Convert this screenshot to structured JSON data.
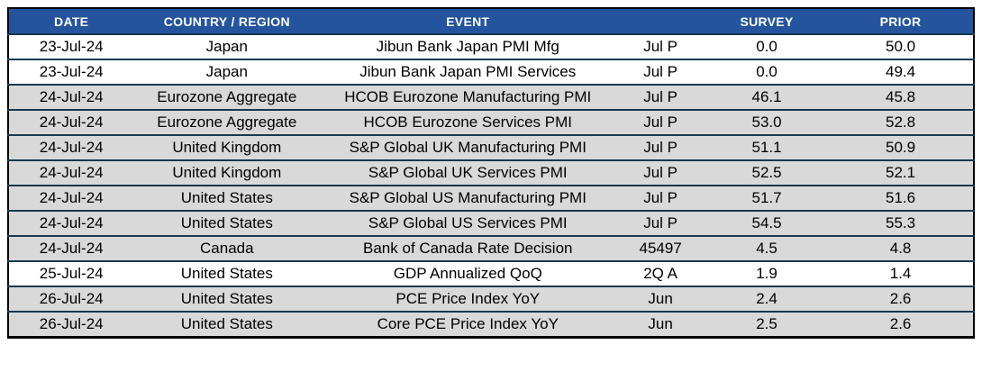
{
  "table": {
    "columns": [
      {
        "label": "DATE"
      },
      {
        "label": "COUNTRY / REGION"
      },
      {
        "label": "EVENT"
      },
      {
        "label": ""
      },
      {
        "label": "SURVEY"
      },
      {
        "label": "PRIOR"
      }
    ],
    "rows": [
      {
        "date": "23-Jul-24",
        "country": "Japan",
        "event": "Jibun Bank Japan PMI Mfg",
        "period": "Jul P",
        "survey": "0.0",
        "prior": "50.0",
        "shaded": false
      },
      {
        "date": "23-Jul-24",
        "country": "Japan",
        "event": "Jibun Bank Japan PMI Services",
        "period": "Jul P",
        "survey": "0.0",
        "prior": "49.4",
        "shaded": false
      },
      {
        "date": "24-Jul-24",
        "country": "Eurozone Aggregate",
        "event": "HCOB Eurozone Manufacturing PMI",
        "period": "Jul P",
        "survey": "46.1",
        "prior": "45.8",
        "shaded": true
      },
      {
        "date": "24-Jul-24",
        "country": "Eurozone Aggregate",
        "event": "HCOB Eurozone Services PMI",
        "period": "Jul P",
        "survey": "53.0",
        "prior": "52.8",
        "shaded": true
      },
      {
        "date": "24-Jul-24",
        "country": "United Kingdom",
        "event": "S&P Global UK Manufacturing PMI",
        "period": "Jul P",
        "survey": "51.1",
        "prior": "50.9",
        "shaded": true
      },
      {
        "date": "24-Jul-24",
        "country": "United Kingdom",
        "event": "S&P Global UK Services PMI",
        "period": "Jul P",
        "survey": "52.5",
        "prior": "52.1",
        "shaded": true
      },
      {
        "date": "24-Jul-24",
        "country": "United States",
        "event": "S&P Global US Manufacturing PMI",
        "period": "Jul P",
        "survey": "51.7",
        "prior": "51.6",
        "shaded": true
      },
      {
        "date": "24-Jul-24",
        "country": "United States",
        "event": "S&P Global US Services PMI",
        "period": "Jul P",
        "survey": "54.5",
        "prior": "55.3",
        "shaded": true
      },
      {
        "date": "24-Jul-24",
        "country": "Canada",
        "event": "Bank of Canada Rate Decision",
        "period": "45497",
        "survey": "4.5",
        "prior": "4.8",
        "shaded": true
      },
      {
        "date": "25-Jul-24",
        "country": "United States",
        "event": "GDP Annualized QoQ",
        "period": "2Q A",
        "survey": "1.9",
        "prior": "1.4",
        "shaded": false
      },
      {
        "date": "26-Jul-24",
        "country": "United States",
        "event": "PCE Price Index YoY",
        "period": "Jun",
        "survey": "2.4",
        "prior": "2.6",
        "shaded": true
      },
      {
        "date": "26-Jul-24",
        "country": "United States",
        "event": "Core PCE Price Index YoY",
        "period": "Jun",
        "survey": "2.5",
        "prior": "2.6",
        "shaded": true
      }
    ]
  },
  "colors": {
    "header_bg": "#24549E",
    "header_text": "#FFFFFF",
    "row_bg": "#FFFFFF",
    "row_shaded_bg": "#D9D9D9",
    "separator": "#17384E",
    "outer_border": "#000000",
    "body_text": "#000000"
  }
}
